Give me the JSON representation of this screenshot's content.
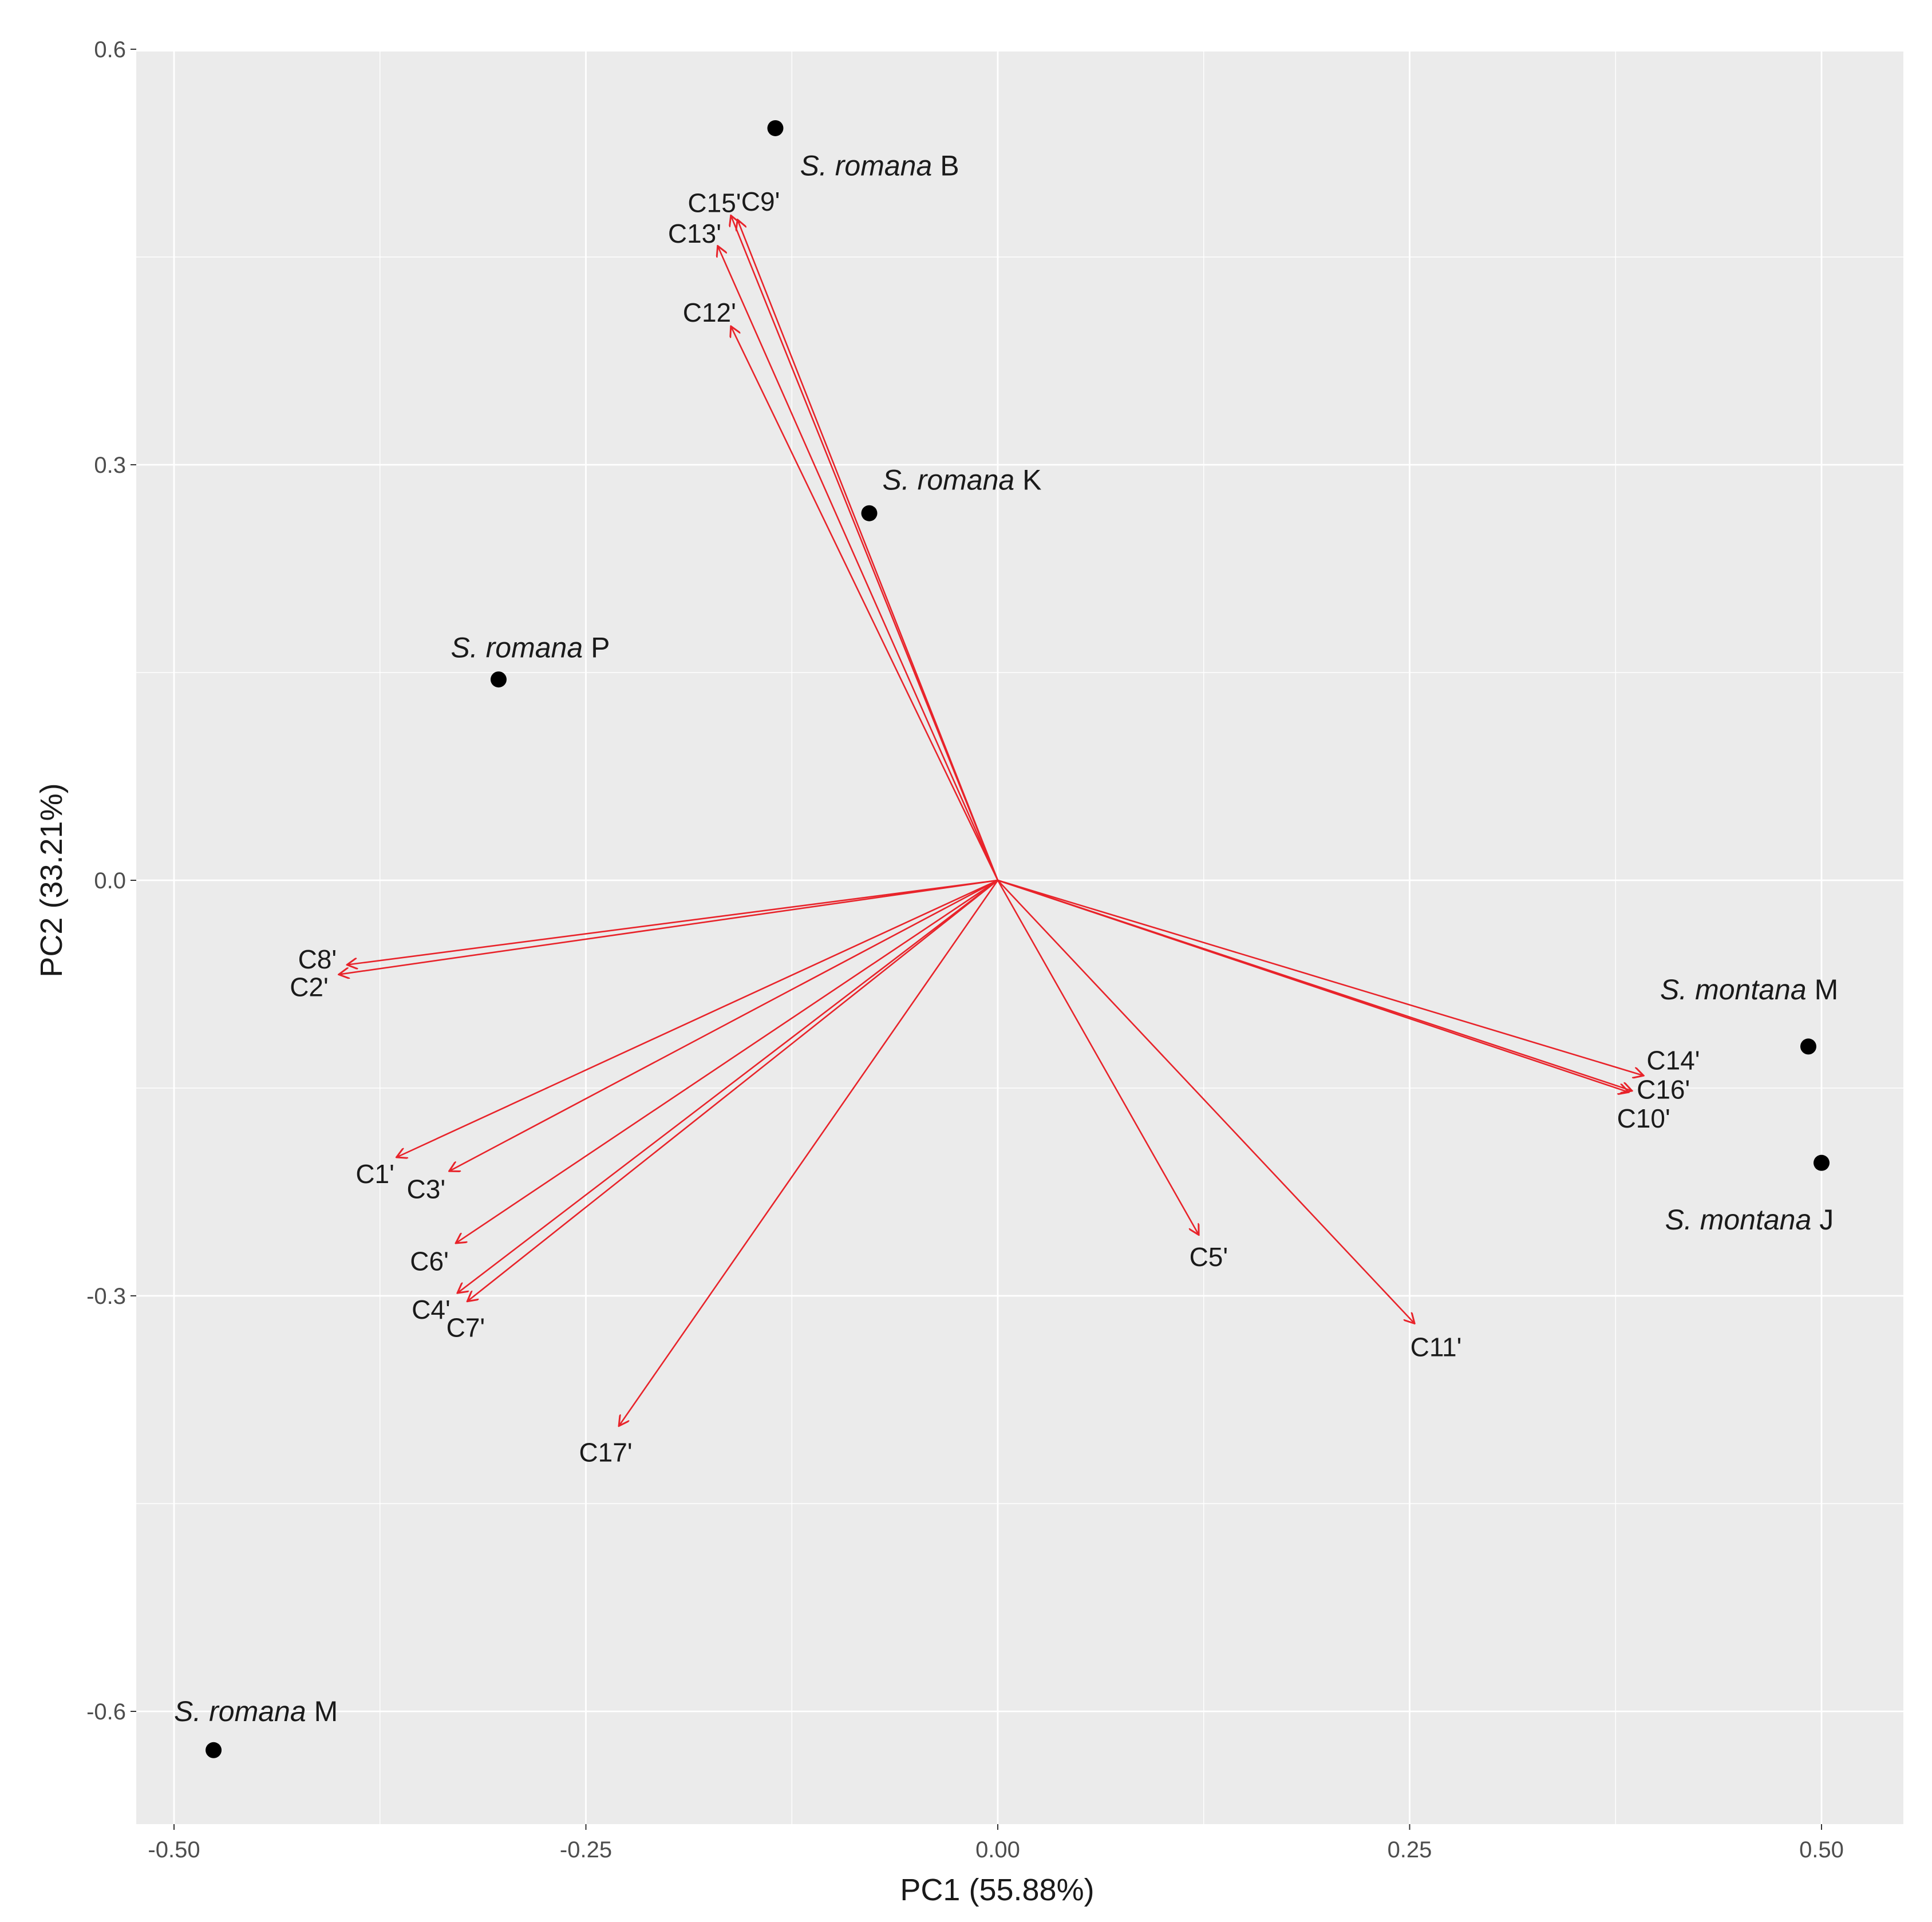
{
  "chart_data": {
    "type": "biplot",
    "xlabel": "PC1 (55.88%)",
    "ylabel": "PC2 (33.21%)",
    "xlim": [
      -0.525,
      0.55
    ],
    "ylim": [
      -0.68,
      0.6
    ],
    "x_ticks": [
      {
        "value": -0.5,
        "label": "-0.50"
      },
      {
        "value": -0.25,
        "label": "-0.25"
      },
      {
        "value": 0,
        "label": "0.00"
      },
      {
        "value": 0.25,
        "label": "0.25"
      },
      {
        "value": 0.5,
        "label": "0.50"
      }
    ],
    "y_ticks": [
      {
        "value": 0.6,
        "label": "0.6"
      },
      {
        "value": 0.3,
        "label": "0.3"
      },
      {
        "value": 0,
        "label": "0.0"
      },
      {
        "value": -0.3,
        "label": "-0.3"
      },
      {
        "value": -0.6,
        "label": "-0.6"
      }
    ],
    "grid": true,
    "colors": {
      "panel": "#ebebeb",
      "grid": "#ffffff",
      "arrow": "#e8232a",
      "point": "#000000",
      "text": "#1a1a1a"
    },
    "loadings": [
      {
        "name": "C1'",
        "x": -0.365,
        "y": -0.2,
        "lx": -0.378,
        "ly": -0.212,
        "anchor": "middle"
      },
      {
        "name": "C2'",
        "x": -0.4,
        "y": -0.068,
        "lx": -0.418,
        "ly": -0.077,
        "anchor": "middle"
      },
      {
        "name": "C3'",
        "x": -0.333,
        "y": -0.21,
        "lx": -0.347,
        "ly": -0.223,
        "anchor": "middle"
      },
      {
        "name": "C4'",
        "x": -0.328,
        "y": -0.298,
        "lx": -0.344,
        "ly": -0.31,
        "anchor": "middle"
      },
      {
        "name": "C5'",
        "x": 0.122,
        "y": -0.256,
        "lx": 0.128,
        "ly": -0.272,
        "anchor": "middle"
      },
      {
        "name": "C6'",
        "x": -0.329,
        "y": -0.262,
        "lx": -0.345,
        "ly": -0.275,
        "anchor": "middle"
      },
      {
        "name": "C7'",
        "x": -0.322,
        "y": -0.304,
        "lx": -0.323,
        "ly": -0.323,
        "anchor": "middle"
      },
      {
        "name": "C8'",
        "x": -0.395,
        "y": -0.061,
        "lx": -0.413,
        "ly": -0.057,
        "anchor": "middle"
      },
      {
        "name": "C9'",
        "x": -0.158,
        "y": 0.477,
        "lx": -0.144,
        "ly": 0.49,
        "anchor": "middle"
      },
      {
        "name": "C10'",
        "x": 0.383,
        "y": -0.153,
        "lx": 0.392,
        "ly": -0.172,
        "anchor": "middle"
      },
      {
        "name": "C11'",
        "x": 0.253,
        "y": -0.32,
        "lx": 0.266,
        "ly": -0.337,
        "anchor": "middle"
      },
      {
        "name": "C12'",
        "x": -0.162,
        "y": 0.4,
        "lx": -0.175,
        "ly": 0.41,
        "anchor": "middle"
      },
      {
        "name": "C13'",
        "x": -0.17,
        "y": 0.458,
        "lx": -0.184,
        "ly": 0.467,
        "anchor": "middle"
      },
      {
        "name": "C14'",
        "x": 0.392,
        "y": -0.141,
        "lx": 0.41,
        "ly": -0.13,
        "anchor": "middle"
      },
      {
        "name": "C15'",
        "x": -0.162,
        "y": 0.48,
        "lx": -0.172,
        "ly": 0.489,
        "anchor": "middle"
      },
      {
        "name": "C16'",
        "x": 0.385,
        "y": -0.152,
        "lx": 0.404,
        "ly": -0.151,
        "anchor": "middle"
      },
      {
        "name": "C17'",
        "x": -0.23,
        "y": -0.394,
        "lx": -0.238,
        "ly": -0.413,
        "anchor": "middle"
      }
    ],
    "samples": [
      {
        "name": "S. romana B",
        "italic": "S. romana",
        "suffix": " B",
        "x": -0.135,
        "y": 0.543,
        "lx": -0.12,
        "ly": 0.516,
        "anchor": "start"
      },
      {
        "name": "S. romana K",
        "italic": "S. romana",
        "suffix": " K",
        "x": -0.078,
        "y": 0.265,
        "lx": -0.07,
        "ly": 0.289,
        "anchor": "start"
      },
      {
        "name": "S. romana P",
        "italic": "S. romana",
        "suffix": " P",
        "x": -0.303,
        "y": 0.145,
        "lx": -0.332,
        "ly": 0.168,
        "anchor": "start"
      },
      {
        "name": "S. montana M",
        "italic": "S. montana",
        "suffix": " M",
        "x": 0.492,
        "y": -0.12,
        "lx": 0.402,
        "ly": -0.079,
        "anchor": "start"
      },
      {
        "name": "S. montana J",
        "italic": "S. montana",
        "suffix": " J",
        "x": 0.5,
        "y": -0.204,
        "lx": 0.405,
        "ly": -0.245,
        "anchor": "start"
      },
      {
        "name": "S. romana M",
        "italic": "S. romana",
        "suffix": " M",
        "x": -0.476,
        "y": -0.628,
        "lx": -0.5,
        "ly": -0.6,
        "anchor": "start"
      }
    ]
  }
}
